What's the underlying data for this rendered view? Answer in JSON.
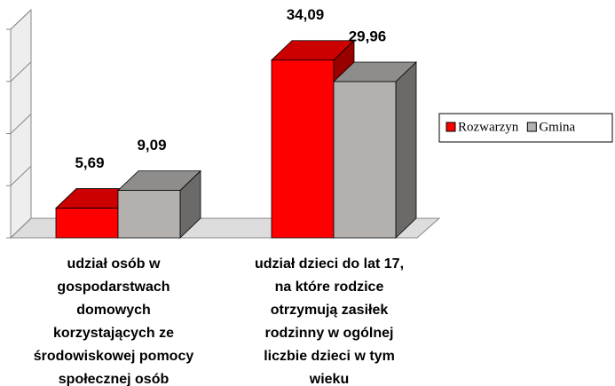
{
  "chart_data": {
    "type": "bar3d",
    "categories": [
      "udział osób w\ngospodarstwach\ndomowych\nkorzystających ze\nśrodowiskowej pomocy\nspołecznej osób",
      "udział dzieci do lat 17,\nna które rodzice\notrzymują zasiłek\nrodzinny w ogólnej\nliczbie dzieci w tym\nwieku"
    ],
    "series": [
      {
        "name": "Rozwarzyn",
        "color": "#ff0000",
        "values": [
          5.69,
          34.09
        ],
        "value_labels": [
          "5,69",
          "34,09"
        ]
      },
      {
        "name": "Gmina",
        "color": "#b3b0ae",
        "values": [
          9.09,
          29.96
        ],
        "value_labels": [
          "9,09",
          "29,96"
        ]
      }
    ],
    "ylim": [
      0,
      40
    ],
    "yticks": [
      0,
      10,
      20,
      30,
      40
    ],
    "legend": "right"
  }
}
